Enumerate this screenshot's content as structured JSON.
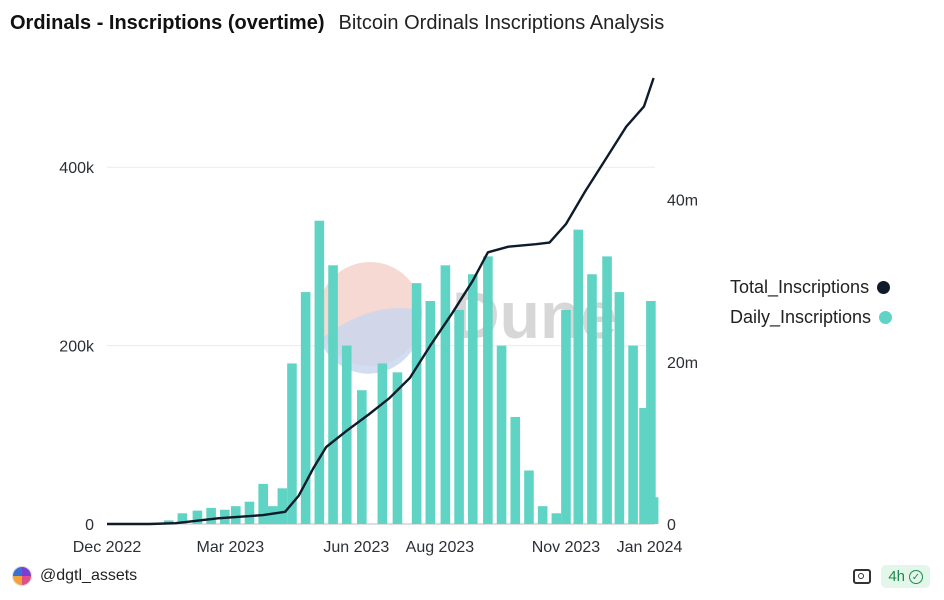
{
  "header": {
    "title": "Ordinals - Inscriptions (overtime)",
    "subtitle": "Bitcoin Ordinals Inscriptions Analysis"
  },
  "footer": {
    "author": "@dgtl_assets",
    "freshness": "4h"
  },
  "watermark": "Dune",
  "colors": {
    "bars": "#5fd3c4",
    "line": "#0d1b2a"
  },
  "chart_data": {
    "type": "bar+line",
    "x_range": [
      "2022-12-01",
      "2024-01-05"
    ],
    "x_ticks": [
      {
        "date": "2022-12-01",
        "label": "Dec 2022"
      },
      {
        "date": "2023-03-01",
        "label": "Mar 2023"
      },
      {
        "date": "2023-06-01",
        "label": "Jun 2023"
      },
      {
        "date": "2023-08-01",
        "label": "Aug 2023"
      },
      {
        "date": "2023-11-01",
        "label": "Nov 2023"
      },
      {
        "date": "2024-01-01",
        "label": "Jan 2024"
      }
    ],
    "y_left": {
      "range": [
        0,
        500000
      ],
      "ticks": [
        {
          "v": 0,
          "label": "0"
        },
        {
          "v": 200000,
          "label": "200k"
        },
        {
          "v": 400000,
          "label": "400k"
        }
      ]
    },
    "y_right": {
      "range": [
        0,
        55000000
      ],
      "ticks": [
        {
          "v": 0,
          "label": "0"
        },
        {
          "v": 20000000,
          "label": "20m"
        },
        {
          "v": 40000000,
          "label": "40m"
        }
      ]
    },
    "legend_position": "right",
    "gridlines": true,
    "series": [
      {
        "name": "Daily_Inscriptions",
        "type": "bar",
        "axis": "left",
        "color": "#5fd3c4",
        "points": [
          [
            "2022-12-15",
            0
          ],
          [
            "2023-01-01",
            0
          ],
          [
            "2023-01-15",
            4000
          ],
          [
            "2023-01-25",
            12000
          ],
          [
            "2023-02-05",
            15000
          ],
          [
            "2023-02-15",
            18000
          ],
          [
            "2023-02-25",
            16000
          ],
          [
            "2023-03-05",
            20000
          ],
          [
            "2023-03-15",
            25000
          ],
          [
            "2023-03-25",
            45000
          ],
          [
            "2023-04-01",
            20000
          ],
          [
            "2023-04-08",
            40000
          ],
          [
            "2023-04-15",
            180000
          ],
          [
            "2023-04-25",
            260000
          ],
          [
            "2023-05-05",
            340000
          ],
          [
            "2023-05-15",
            290000
          ],
          [
            "2023-05-25",
            200000
          ],
          [
            "2023-06-05",
            150000
          ],
          [
            "2023-06-20",
            180000
          ],
          [
            "2023-07-01",
            170000
          ],
          [
            "2023-07-15",
            270000
          ],
          [
            "2023-07-25",
            250000
          ],
          [
            "2023-08-05",
            290000
          ],
          [
            "2023-08-15",
            240000
          ],
          [
            "2023-08-25",
            280000
          ],
          [
            "2023-09-05",
            300000
          ],
          [
            "2023-09-15",
            200000
          ],
          [
            "2023-09-25",
            120000
          ],
          [
            "2023-10-05",
            60000
          ],
          [
            "2023-10-15",
            20000
          ],
          [
            "2023-10-25",
            12000
          ],
          [
            "2023-11-01",
            240000
          ],
          [
            "2023-11-10",
            330000
          ],
          [
            "2023-11-20",
            280000
          ],
          [
            "2023-12-01",
            300000
          ],
          [
            "2023-12-10",
            260000
          ],
          [
            "2023-12-20",
            200000
          ],
          [
            "2023-12-28",
            130000
          ],
          [
            "2024-01-02",
            250000
          ],
          [
            "2024-01-04",
            30000
          ]
        ]
      },
      {
        "name": "Total_Inscriptions",
        "type": "line",
        "axis": "right",
        "color": "#0d1b2a",
        "points": [
          [
            "2022-12-01",
            0
          ],
          [
            "2023-01-01",
            0
          ],
          [
            "2023-01-20",
            100000
          ],
          [
            "2023-02-20",
            700000
          ],
          [
            "2023-03-25",
            1100000
          ],
          [
            "2023-04-10",
            1500000
          ],
          [
            "2023-04-20",
            3500000
          ],
          [
            "2023-05-01",
            7000000
          ],
          [
            "2023-05-10",
            9500000
          ],
          [
            "2023-05-25",
            11500000
          ],
          [
            "2023-06-10",
            13500000
          ],
          [
            "2023-06-25",
            15500000
          ],
          [
            "2023-07-10",
            18000000
          ],
          [
            "2023-07-25",
            22000000
          ],
          [
            "2023-08-10",
            26000000
          ],
          [
            "2023-08-25",
            30000000
          ],
          [
            "2023-09-05",
            33500000
          ],
          [
            "2023-09-20",
            34200000
          ],
          [
            "2023-10-10",
            34500000
          ],
          [
            "2023-10-20",
            34700000
          ],
          [
            "2023-11-01",
            37000000
          ],
          [
            "2023-11-15",
            41000000
          ],
          [
            "2023-11-30",
            45000000
          ],
          [
            "2023-12-15",
            49000000
          ],
          [
            "2023-12-28",
            51500000
          ],
          [
            "2024-01-04",
            55000000
          ]
        ]
      }
    ]
  },
  "legend": [
    {
      "label": "Total_Inscriptions",
      "color": "#0d1b2a"
    },
    {
      "label": "Daily_Inscriptions",
      "color": "#5fd3c4"
    }
  ]
}
